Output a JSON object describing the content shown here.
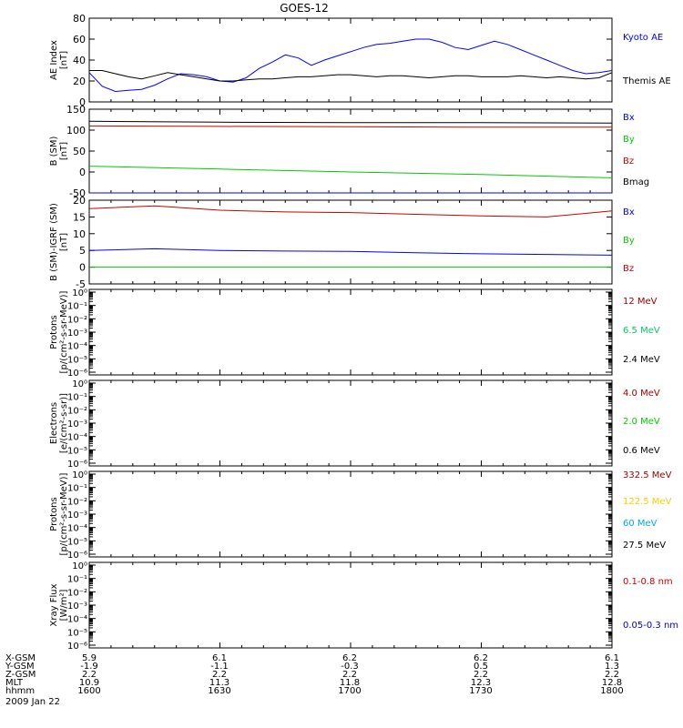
{
  "title": "GOES-12",
  "chart_data": [
    {
      "type": "line",
      "ylabel": [
        "AE Index",
        "[nT]"
      ],
      "ylim": [
        0,
        80
      ],
      "yticks": [
        "0",
        "20",
        "40",
        "60",
        "80"
      ],
      "x": [
        1600,
        1603,
        1606,
        1609,
        1612,
        1615,
        1618,
        1621,
        1624,
        1627,
        1630,
        1633,
        1636,
        1639,
        1642,
        1645,
        1648,
        1651,
        1654,
        1657,
        1700,
        1703,
        1706,
        1709,
        1712,
        1715,
        1718,
        1721,
        1724,
        1727,
        1730,
        1733,
        1736,
        1739,
        1742,
        1745,
        1748,
        1751,
        1754,
        1757,
        1800
      ],
      "series": [
        {
          "name": "Kyoto AE",
          "color": "#0000ff",
          "values": [
            28,
            15,
            10,
            11,
            12,
            16,
            22,
            27,
            26,
            24,
            20,
            19,
            23,
            32,
            38,
            45,
            42,
            35,
            40,
            44,
            48,
            52,
            55,
            56,
            58,
            60,
            60,
            57,
            52,
            50,
            54,
            58,
            55,
            50,
            45,
            40,
            35,
            30,
            27,
            28,
            30
          ]
        },
        {
          "name": "Themis AE",
          "color": "#000000",
          "values": [
            30,
            30,
            27,
            24,
            22,
            25,
            28,
            26,
            24,
            22,
            20,
            20,
            21,
            22,
            22,
            23,
            24,
            24,
            25,
            26,
            26,
            25,
            24,
            25,
            25,
            24,
            23,
            24,
            25,
            25,
            24,
            24,
            24,
            25,
            24,
            23,
            24,
            23,
            22,
            23,
            28
          ]
        }
      ],
      "legend": [
        "Kyoto AE",
        "Themis AE"
      ]
    },
    {
      "type": "line",
      "ylabel": [
        "B (SM)",
        "[nT]"
      ],
      "ylim": [
        -50,
        150
      ],
      "yticks": [
        "-50",
        "0",
        "50",
        "100",
        "150"
      ],
      "x": [
        1600,
        1630,
        1700,
        1730,
        1800
      ],
      "series": [
        {
          "name": "Bx",
          "color": "#0000ff",
          "values": [
            -50,
            -50,
            -50,
            -50,
            -50
          ]
        },
        {
          "name": "By",
          "color": "#00cc00",
          "values": [
            14,
            7,
            0,
            -6,
            -14
          ]
        },
        {
          "name": "Bz",
          "color": "#cc0000",
          "values": [
            110,
            109,
            108,
            107,
            107
          ]
        },
        {
          "name": "Bmag",
          "color": "#000000",
          "values": [
            121,
            119,
            118,
            118,
            117
          ]
        }
      ],
      "legend": [
        "Bx",
        "By",
        "Bz",
        "Bmag"
      ]
    },
    {
      "type": "line",
      "ylabel": [
        "B (SM)-IGRF (SM)",
        "[nT]"
      ],
      "ylim": [
        -5,
        20
      ],
      "yticks": [
        "-5",
        "0",
        "5",
        "10",
        "15",
        "20"
      ],
      "x": [
        1600,
        1615,
        1630,
        1645,
        1700,
        1715,
        1730,
        1745,
        1800
      ],
      "series": [
        {
          "name": "Bx",
          "color": "#0000ff",
          "values": [
            5,
            5.5,
            5,
            4.8,
            4.7,
            4.3,
            4,
            3.8,
            3.6
          ]
        },
        {
          "name": "By",
          "color": "#00cc00",
          "values": [
            0,
            0,
            0,
            0,
            0,
            0,
            0,
            0,
            0
          ]
        },
        {
          "name": "Bz",
          "color": "#cc0000",
          "values": [
            17.5,
            18.3,
            17,
            16.5,
            16.3,
            15.8,
            15.3,
            15,
            16.8
          ]
        }
      ],
      "legend": [
        "Bx",
        "By",
        "Bz"
      ]
    },
    {
      "type": "line",
      "ylabel": [
        "Protons",
        "[p/(cm²-s-sr-MeV)]"
      ],
      "yscale": "log",
      "yticks": [
        "10⁻⁶",
        "10⁻⁵",
        "10⁻⁴",
        "10⁻³",
        "10⁻²",
        "10⁻¹",
        "10⁰"
      ],
      "series": [],
      "legend": [
        "12 MeV",
        "6.5 MeV",
        "2.4 MeV"
      ]
    },
    {
      "type": "line",
      "ylabel": [
        "Electrons",
        "[e/(cm²-s-sr)]"
      ],
      "yscale": "log",
      "yticks": [
        "10⁻⁶",
        "10⁻⁵",
        "10⁻⁴",
        "10⁻³",
        "10⁻²",
        "10⁻¹",
        "10⁰"
      ],
      "series": [],
      "legend": [
        "4.0 MeV",
        "2.0 MeV",
        "0.6 MeV"
      ]
    },
    {
      "type": "line",
      "ylabel": [
        "Protons",
        "[p/(cm²-s-sr-MeV)]"
      ],
      "yscale": "log",
      "yticks": [
        "10⁻⁶",
        "10⁻⁵",
        "10⁻⁴",
        "10⁻³",
        "10⁻²",
        "10⁻¹",
        "10⁰"
      ],
      "series": [],
      "legend": [
        "332.5 MeV",
        "122.5 MeV",
        "60 MeV",
        "27.5 MeV"
      ]
    },
    {
      "type": "line",
      "ylabel": [
        "Xray Flux",
        "[W/m²]"
      ],
      "yscale": "log",
      "yticks": [
        "10⁻⁶",
        "10⁻⁵",
        "10⁻⁴",
        "10⁻³",
        "10⁻²",
        "10⁻¹",
        "10⁰"
      ],
      "series": [],
      "legend": [
        "0.1-0.8 nm",
        "0.05-0.3 nm"
      ]
    }
  ],
  "legend_colors": {
    "Kyoto AE": "#0000ff",
    "Themis AE": "#000000",
    "Bx": "#0000ff",
    "By": "#00cc00",
    "Bz": "#cc0000",
    "Bmag": "#000000",
    "12 MeV": "#990000",
    "6.5 MeV": "#00cc66",
    "2.4 MeV": "#000000",
    "4.0 MeV": "#990000",
    "2.0 MeV": "#00cc00",
    "0.6 MeV": "#000000",
    "332.5 MeV": "#990000",
    "122.5 MeV": "#ffcc00",
    "60 MeV": "#00aaee",
    "27.5 MeV": "#000000",
    "0.1-0.8 nm": "#cc0000",
    "0.05-0.3 nm": "#0000cc"
  },
  "x_axis": {
    "row_labels": [
      "X-GSM",
      "Y-GSM",
      "Z-GSM",
      "MLT",
      "hhmm"
    ],
    "date": "2009 Jan 22",
    "columns": [
      [
        "5.9",
        "-1.9",
        "2.2",
        "10.9",
        "1600"
      ],
      [
        "6.1",
        "-1.1",
        "2.2",
        "11.3",
        "1630"
      ],
      [
        "6.2",
        "-0.3",
        "2.2",
        "11.8",
        "1700"
      ],
      [
        "6.2",
        "0.5",
        "2.2",
        "12.3",
        "1730"
      ],
      [
        "6.1",
        "1.3",
        "2.2",
        "12.8",
        "1800"
      ]
    ]
  }
}
